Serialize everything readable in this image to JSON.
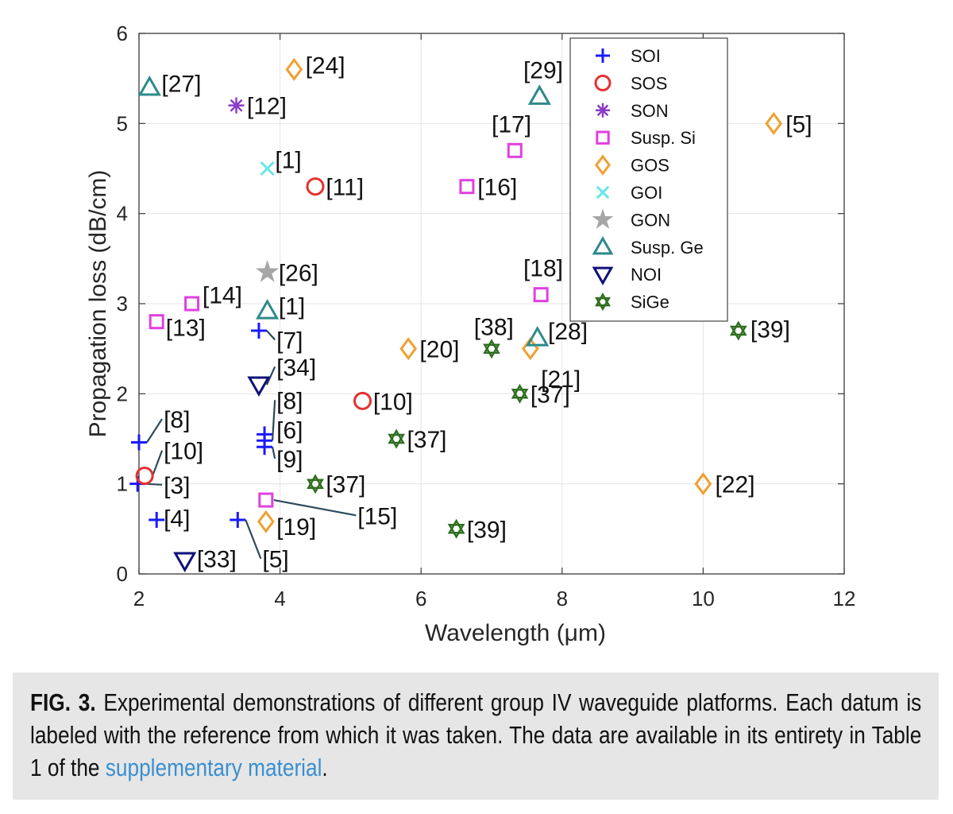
{
  "chart_data": {
    "type": "scatter",
    "xlabel": "Wavelength (μm)",
    "ylabel": "Propagation loss (dB/cm)",
    "xlim": [
      2,
      12
    ],
    "ylim": [
      0,
      6
    ],
    "xticks": [
      2,
      4,
      6,
      8,
      10,
      12
    ],
    "yticks": [
      0,
      1,
      2,
      3,
      4,
      5,
      6
    ],
    "grid": true,
    "legend_position": "top-right",
    "series": [
      {
        "name": "SOI",
        "marker": "plus",
        "color": "#1a1aff",
        "points": [
          {
            "x": 2.0,
            "y": 1.46,
            "label": "[8]",
            "lx": 2.35,
            "ly": 1.72,
            "leader": true
          },
          {
            "x": 1.98,
            "y": 1.0,
            "label": "[3]",
            "lx": 2.35,
            "ly": 0.99,
            "leader": true
          },
          {
            "x": 2.25,
            "y": 0.6,
            "label": "[4]",
            "lx": 2.35,
            "ly": 0.62,
            "leader": false
          },
          {
            "x": 3.7,
            "y": 2.7,
            "label": "[7]",
            "lx": 3.95,
            "ly": 2.6,
            "leader": true
          },
          {
            "x": 3.78,
            "y": 1.55,
            "label": "[6]",
            "lx": 3.95,
            "ly": 1.6,
            "leader": false
          },
          {
            "x": 3.78,
            "y": 1.48,
            "label": "[8]",
            "lx": 3.95,
            "ly": 1.93,
            "leader": true
          },
          {
            "x": 3.78,
            "y": 1.41,
            "label": "[9]",
            "lx": 3.95,
            "ly": 1.28,
            "leader": true
          },
          {
            "x": 3.4,
            "y": 0.6,
            "label": "[5]",
            "lx": 3.75,
            "ly": 0.17,
            "leader": true
          }
        ]
      },
      {
        "name": "SOS",
        "marker": "circle",
        "color": "#e53030",
        "points": [
          {
            "x": 2.08,
            "y": 1.09,
            "label": "[10]",
            "lx": 2.35,
            "ly": 1.37,
            "leader": true
          },
          {
            "x": 4.5,
            "y": 4.3,
            "label": "[11]",
            "lx": 4.65,
            "ly": 4.3,
            "leader": false
          },
          {
            "x": 5.17,
            "y": 1.92,
            "label": "[10]",
            "lx": 5.32,
            "ly": 1.92,
            "leader": false
          }
        ]
      },
      {
        "name": "SON",
        "marker": "asterisk",
        "color": "#8a3bc8",
        "points": [
          {
            "x": 3.38,
            "y": 5.2,
            "label": "[12]",
            "lx": 3.53,
            "ly": 5.2,
            "leader": false
          }
        ]
      },
      {
        "name": "Susp. Si",
        "marker": "square",
        "color": "#e040e0",
        "points": [
          {
            "x": 2.25,
            "y": 2.8,
            "label": "[13]",
            "lx": 2.38,
            "ly": 2.74,
            "leader": false
          },
          {
            "x": 2.75,
            "y": 3.0,
            "label": "[14]",
            "lx": 2.9,
            "ly": 3.1,
            "leader": false
          },
          {
            "x": 3.8,
            "y": 0.82,
            "label": "[15]",
            "lx": 5.1,
            "ly": 0.65,
            "leader": true
          },
          {
            "x": 6.65,
            "y": 4.3,
            "label": "[16]",
            "lx": 6.8,
            "ly": 4.3,
            "leader": false
          },
          {
            "x": 7.33,
            "y": 4.7,
            "label": "[17]",
            "lx": 7.0,
            "ly": 5.0,
            "leader": false
          },
          {
            "x": 7.7,
            "y": 3.1,
            "label": "[18]",
            "lx": 7.45,
            "ly": 3.4,
            "leader": false
          }
        ]
      },
      {
        "name": "GOS",
        "marker": "diamond",
        "color": "#f0a030",
        "points": [
          {
            "x": 4.2,
            "y": 5.6,
            "label": "[24]",
            "lx": 4.36,
            "ly": 5.65,
            "leader": false
          },
          {
            "x": 3.8,
            "y": 0.58,
            "label": "[19]",
            "lx": 3.95,
            "ly": 0.53,
            "leader": false
          },
          {
            "x": 5.82,
            "y": 2.5,
            "label": "[20]",
            "lx": 5.98,
            "ly": 2.5,
            "leader": false
          },
          {
            "x": 7.55,
            "y": 2.5,
            "label": "[21]",
            "lx": 7.7,
            "ly": 2.17,
            "leader": false
          },
          {
            "x": 10.0,
            "y": 1.0,
            "label": "[22]",
            "lx": 10.17,
            "ly": 1.0,
            "leader": false
          },
          {
            "x": 11.0,
            "y": 5.0,
            "label": "[5]",
            "lx": 11.17,
            "ly": 5.0,
            "leader": false
          }
        ]
      },
      {
        "name": "GOI",
        "marker": "cross",
        "color": "#66e6e6",
        "points": [
          {
            "x": 3.82,
            "y": 4.5,
            "label": "[1]",
            "lx": 3.93,
            "ly": 4.6,
            "leader": false
          }
        ]
      },
      {
        "name": "GON",
        "marker": "star",
        "color": "#a6a6a6",
        "points": [
          {
            "x": 3.82,
            "y": 3.35,
            "label": "[26]",
            "lx": 3.98,
            "ly": 3.35,
            "leader": false
          }
        ]
      },
      {
        "name": "Susp. Ge",
        "marker": "triangle-up",
        "color": "#2e8a8a",
        "points": [
          {
            "x": 2.15,
            "y": 5.4,
            "label": "[27]",
            "lx": 2.32,
            "ly": 5.45,
            "leader": false
          },
          {
            "x": 7.68,
            "y": 5.3,
            "label": "[29]",
            "lx": 7.45,
            "ly": 5.6,
            "leader": false
          },
          {
            "x": 3.82,
            "y": 2.92,
            "label": "[1]",
            "lx": 3.98,
            "ly": 2.98,
            "leader": false
          },
          {
            "x": 7.65,
            "y": 2.62,
            "label": "[28]",
            "lx": 7.8,
            "ly": 2.7,
            "leader": false
          }
        ]
      },
      {
        "name": "NOI",
        "marker": "triangle-down",
        "color": "#10107a",
        "points": [
          {
            "x": 3.7,
            "y": 2.1,
            "label": "[34]",
            "lx": 3.95,
            "ly": 2.3,
            "leader": true
          },
          {
            "x": 2.65,
            "y": 0.15,
            "label": "[33]",
            "lx": 2.82,
            "ly": 0.17,
            "leader": false
          }
        ]
      },
      {
        "name": "SiGe",
        "marker": "hexagram",
        "color": "#2e6e1e",
        "points": [
          {
            "x": 4.5,
            "y": 1.0,
            "label": "[37]",
            "lx": 4.65,
            "ly": 1.0,
            "leader": false
          },
          {
            "x": 5.65,
            "y": 1.5,
            "label": "[37]",
            "lx": 5.8,
            "ly": 1.5,
            "leader": false
          },
          {
            "x": 7.0,
            "y": 2.5,
            "label": "[38]",
            "lx": 6.75,
            "ly": 2.75,
            "leader": false
          },
          {
            "x": 7.4,
            "y": 2.0,
            "label": "[37]",
            "lx": 7.55,
            "ly": 2.0,
            "leader": false
          },
          {
            "x": 6.5,
            "y": 0.5,
            "label": "[39]",
            "lx": 6.65,
            "ly": 0.5,
            "leader": false
          },
          {
            "x": 10.5,
            "y": 2.7,
            "label": "[39]",
            "lx": 10.67,
            "ly": 2.72,
            "leader": false
          }
        ]
      }
    ]
  },
  "caption": {
    "fig_label": "FIG. 3.",
    "text": " Experimental demonstrations of different group IV waveguide platforms. Each datum is labeled with the reference from which it was taken. The data are available in its entirety in Table 1 of the ",
    "link_text": "supplementary material",
    "end": "."
  }
}
